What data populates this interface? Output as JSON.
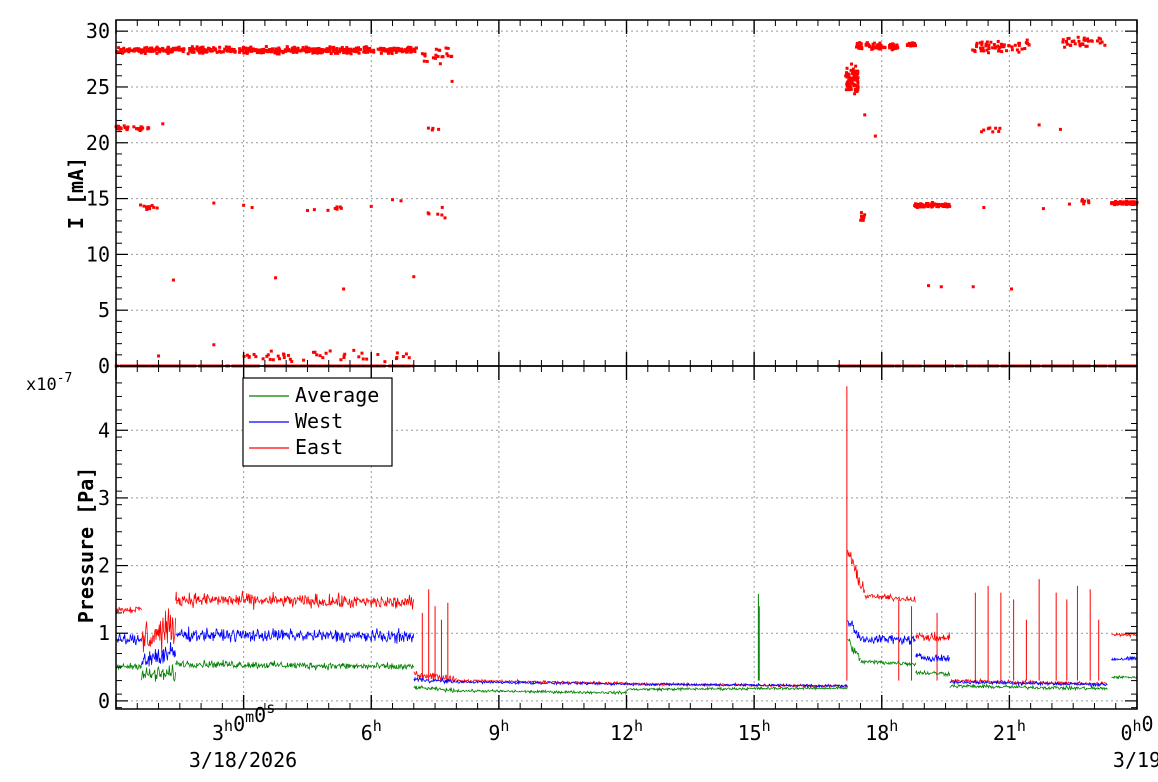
{
  "chart_data": [
    {
      "type": "scatter",
      "panel": "top",
      "ylabel": "I [mA]",
      "ylim": [
        0,
        31
      ],
      "y_ticks": [
        "0",
        "5",
        "10",
        "15",
        "20",
        "25",
        "30"
      ],
      "x_range_hours": [
        0,
        24
      ],
      "grid": true,
      "series": [
        {
          "color": "#ff0000",
          "clusters": [
            {
              "x0": 0.0,
              "x1": 7.1,
              "y": 28.3,
              "spread": 0.4,
              "n": 520
            },
            {
              "x0": 7.2,
              "x1": 8.0,
              "y": 27.8,
              "spread": 1.0,
              "n": 22
            },
            {
              "x0": 17.15,
              "x1": 17.45,
              "y": 25.5,
              "spread": 1.8,
              "n": 70
            },
            {
              "x0": 17.4,
              "x1": 18.4,
              "y": 28.6,
              "spread": 0.5,
              "n": 80
            },
            {
              "x0": 18.6,
              "x1": 18.8,
              "y": 28.8,
              "spread": 0.3,
              "n": 20
            },
            {
              "x0": 20.1,
              "x1": 21.5,
              "y": 28.6,
              "spread": 0.9,
              "n": 60
            },
            {
              "x0": 22.2,
              "x1": 23.3,
              "y": 29.0,
              "spread": 0.7,
              "n": 35
            },
            {
              "x0": 0.0,
              "x1": 0.8,
              "y": 21.3,
              "spread": 0.3,
              "n": 30
            },
            {
              "x0": 7.3,
              "x1": 7.8,
              "y": 21.2,
              "spread": 0.2,
              "n": 4
            },
            {
              "x0": 20.3,
              "x1": 20.8,
              "y": 21.2,
              "spread": 0.4,
              "n": 8
            },
            {
              "x0": 0.5,
              "x1": 1.0,
              "y": 14.2,
              "spread": 0.5,
              "n": 10
            },
            {
              "x0": 4.5,
              "x1": 5.3,
              "y": 14.1,
              "spread": 0.3,
              "n": 8
            },
            {
              "x0": 7.3,
              "x1": 8.0,
              "y": 13.6,
              "spread": 0.7,
              "n": 6
            },
            {
              "x0": 17.5,
              "x1": 17.6,
              "y": 13.3,
              "spread": 0.6,
              "n": 10
            },
            {
              "x0": 18.75,
              "x1": 19.6,
              "y": 14.4,
              "spread": 0.3,
              "n": 90
            },
            {
              "x0": 22.4,
              "x1": 22.9,
              "y": 14.7,
              "spread": 0.3,
              "n": 8
            },
            {
              "x0": 23.4,
              "x1": 24.0,
              "y": 14.6,
              "spread": 0.2,
              "n": 80
            },
            {
              "x0": 0.0,
              "x1": 7.0,
              "y": 0.0,
              "spread": 0.0,
              "n": 300
            },
            {
              "x0": 17.0,
              "x1": 24.0,
              "y": 0.0,
              "spread": 0.0,
              "n": 300
            },
            {
              "x0": 3.0,
              "x1": 7.0,
              "y": 0.9,
              "spread": 0.7,
              "n": 45
            }
          ],
          "points": [
            {
              "x": 1.35,
              "y": 7.7
            },
            {
              "x": 3.75,
              "y": 7.9
            },
            {
              "x": 5.35,
              "y": 6.9
            },
            {
              "x": 7.0,
              "y": 8.0
            },
            {
              "x": 19.1,
              "y": 7.2
            },
            {
              "x": 19.4,
              "y": 7.1
            },
            {
              "x": 20.15,
              "y": 7.1
            },
            {
              "x": 21.05,
              "y": 6.9
            },
            {
              "x": 2.3,
              "y": 14.6
            },
            {
              "x": 3.0,
              "y": 14.4
            },
            {
              "x": 3.2,
              "y": 14.2
            },
            {
              "x": 6.0,
              "y": 14.3
            },
            {
              "x": 6.5,
              "y": 14.9
            },
            {
              "x": 6.7,
              "y": 14.8
            },
            {
              "x": 20.4,
              "y": 14.2
            },
            {
              "x": 21.8,
              "y": 14.1
            },
            {
              "x": 21.7,
              "y": 21.6
            },
            {
              "x": 22.2,
              "y": 21.2
            },
            {
              "x": 17.85,
              "y": 20.6
            },
            {
              "x": 1.1,
              "y": 21.7
            },
            {
              "x": 2.3,
              "y": 1.9
            },
            {
              "x": 1.0,
              "y": 0.9
            },
            {
              "x": 7.9,
              "y": 25.5
            },
            {
              "x": 17.6,
              "y": 22.5
            }
          ]
        }
      ]
    },
    {
      "type": "line",
      "panel": "bottom",
      "ylabel": "Pressure [Pa]",
      "y_exponent": "x10",
      "y_exponent_power": "-7",
      "ylim": [
        -0.12,
        4.95
      ],
      "y_ticks": [
        "0",
        "1",
        "2",
        "3",
        "4"
      ],
      "x_range_hours": [
        0,
        24
      ],
      "x_tick_labels": [
        {
          "hour": 3,
          "label": "3",
          "sup": "h",
          "label2": "0",
          "sup2": "m",
          "label3": "0",
          "sup3": "s"
        },
        {
          "hour": 6,
          "label": "6",
          "sup": "h"
        },
        {
          "hour": 9,
          "label": "9",
          "sup": "h"
        },
        {
          "hour": 12,
          "label": "12",
          "sup": "h"
        },
        {
          "hour": 15,
          "label": "15",
          "sup": "h"
        },
        {
          "hour": 18,
          "label": "18",
          "sup": "h"
        },
        {
          "hour": 21,
          "label": "21",
          "sup": "h"
        },
        {
          "hour": 24,
          "label": "0",
          "sup": "h",
          "label2": "0"
        }
      ],
      "date_labels": [
        "3/18/2026",
        "3/19"
      ],
      "grid": true,
      "legend_position": "top-left",
      "legend_entries": [
        "Average",
        "West",
        "East"
      ],
      "series": [
        {
          "name": "Average",
          "color": "#008000",
          "segments": [
            {
              "x0": 0.0,
              "x1": 0.6,
              "y0": 0.5,
              "y1": 0.52,
              "noise": 0.07
            },
            {
              "x0": 0.6,
              "x1": 1.4,
              "y0": 0.38,
              "y1": 0.4,
              "noise": 0.18
            },
            {
              "x0": 1.4,
              "x1": 7.0,
              "y0": 0.55,
              "y1": 0.5,
              "noise": 0.08
            },
            {
              "x0": 7.0,
              "x1": 8.0,
              "y0": 0.2,
              "y1": 0.15,
              "noise": 0.04
            },
            {
              "x0": 8.0,
              "x1": 12.0,
              "y0": 0.15,
              "y1": 0.12,
              "noise": 0.03
            },
            {
              "x0": 12.0,
              "x1": 17.2,
              "y0": 0.17,
              "y1": 0.19,
              "noise": 0.03
            },
            {
              "x0": 17.2,
              "x1": 17.5,
              "y0": 0.9,
              "y1": 0.6,
              "noise": 0.1
            },
            {
              "x0": 17.5,
              "x1": 18.8,
              "y0": 0.58,
              "y1": 0.55,
              "noise": 0.05
            },
            {
              "x0": 18.8,
              "x1": 19.6,
              "y0": 0.42,
              "y1": 0.4,
              "noise": 0.05
            },
            {
              "x0": 19.6,
              "x1": 23.3,
              "y0": 0.22,
              "y1": 0.18,
              "noise": 0.04
            },
            {
              "x0": 23.4,
              "x1": 24.0,
              "y0": 0.35,
              "y1": 0.35,
              "noise": 0.03
            }
          ],
          "spikes": [
            {
              "x": 15.1,
              "y": 1.58
            },
            {
              "x": 15.12,
              "y": 1.4
            }
          ]
        },
        {
          "name": "West",
          "color": "#0000ff",
          "segments": [
            {
              "x0": 0.0,
              "x1": 0.6,
              "y0": 0.9,
              "y1": 0.9,
              "noise": 0.12
            },
            {
              "x0": 0.6,
              "x1": 1.4,
              "y0": 0.62,
              "y1": 0.7,
              "noise": 0.25
            },
            {
              "x0": 1.4,
              "x1": 7.0,
              "y0": 0.98,
              "y1": 0.95,
              "noise": 0.14
            },
            {
              "x0": 7.0,
              "x1": 8.0,
              "y0": 0.32,
              "y1": 0.28,
              "noise": 0.05
            },
            {
              "x0": 8.0,
              "x1": 12.0,
              "y0": 0.28,
              "y1": 0.25,
              "noise": 0.03
            },
            {
              "x0": 12.0,
              "x1": 17.2,
              "y0": 0.25,
              "y1": 0.22,
              "noise": 0.03
            },
            {
              "x0": 17.2,
              "x1": 17.5,
              "y0": 1.2,
              "y1": 0.9,
              "noise": 0.15
            },
            {
              "x0": 17.5,
              "x1": 18.8,
              "y0": 0.92,
              "y1": 0.9,
              "noise": 0.1
            },
            {
              "x0": 18.8,
              "x1": 19.6,
              "y0": 0.65,
              "y1": 0.62,
              "noise": 0.08
            },
            {
              "x0": 19.6,
              "x1": 23.3,
              "y0": 0.28,
              "y1": 0.24,
              "noise": 0.04
            },
            {
              "x0": 23.4,
              "x1": 24.0,
              "y0": 0.62,
              "y1": 0.62,
              "noise": 0.05
            }
          ],
          "spikes": []
        },
        {
          "name": "East",
          "color": "#ff0000",
          "segments": [
            {
              "x0": 0.0,
              "x1": 0.6,
              "y0": 1.35,
              "y1": 1.35,
              "noise": 0.08
            },
            {
              "x0": 0.6,
              "x1": 1.4,
              "y0": 0.9,
              "y1": 1.1,
              "noise": 0.4
            },
            {
              "x0": 1.4,
              "x1": 7.0,
              "y0": 1.5,
              "y1": 1.45,
              "noise": 0.15
            },
            {
              "x0": 7.0,
              "x1": 8.0,
              "y0": 0.4,
              "y1": 0.32,
              "noise": 0.08
            },
            {
              "x0": 8.0,
              "x1": 12.0,
              "y0": 0.3,
              "y1": 0.26,
              "noise": 0.03
            },
            {
              "x0": 12.0,
              "x1": 17.2,
              "y0": 0.25,
              "y1": 0.22,
              "noise": 0.03
            },
            {
              "x0": 17.2,
              "x1": 17.6,
              "y0": 2.2,
              "y1": 1.6,
              "noise": 0.15
            },
            {
              "x0": 17.6,
              "x1": 18.8,
              "y0": 1.55,
              "y1": 1.5,
              "noise": 0.06
            },
            {
              "x0": 18.8,
              "x1": 19.6,
              "y0": 0.95,
              "y1": 0.92,
              "noise": 0.1
            },
            {
              "x0": 19.6,
              "x1": 23.3,
              "y0": 0.3,
              "y1": 0.25,
              "noise": 0.04
            },
            {
              "x0": 23.4,
              "x1": 24.0,
              "y0": 0.98,
              "y1": 0.98,
              "noise": 0.04
            }
          ],
          "spikes": [
            {
              "x": 17.18,
              "y": 4.65
            },
            {
              "x": 7.2,
              "y": 1.3
            },
            {
              "x": 7.35,
              "y": 1.65
            },
            {
              "x": 7.5,
              "y": 1.4
            },
            {
              "x": 7.65,
              "y": 1.2
            },
            {
              "x": 7.8,
              "y": 1.45
            },
            {
              "x": 18.4,
              "y": 1.5
            },
            {
              "x": 18.7,
              "y": 1.4
            },
            {
              "x": 19.3,
              "y": 1.3
            },
            {
              "x": 20.2,
              "y": 1.6
            },
            {
              "x": 20.5,
              "y": 1.7
            },
            {
              "x": 20.8,
              "y": 1.6
            },
            {
              "x": 21.1,
              "y": 1.5
            },
            {
              "x": 21.4,
              "y": 1.2
            },
            {
              "x": 21.7,
              "y": 1.8
            },
            {
              "x": 22.1,
              "y": 1.6
            },
            {
              "x": 22.35,
              "y": 1.5
            },
            {
              "x": 22.6,
              "y": 1.7
            },
            {
              "x": 22.9,
              "y": 1.65
            },
            {
              "x": 23.1,
              "y": 1.2
            }
          ]
        }
      ]
    }
  ]
}
